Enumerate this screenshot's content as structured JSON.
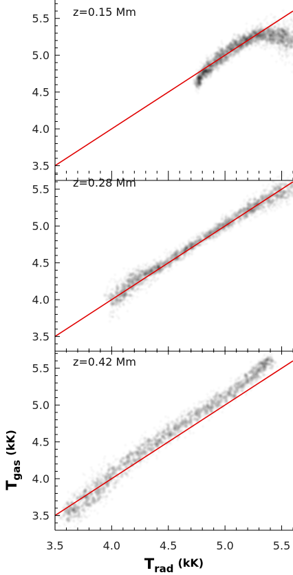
{
  "chart_data": {
    "type": "scatter",
    "layout": "three vertically stacked panels sharing the x axis",
    "xlabel": {
      "base": "T",
      "sub": "rad",
      "unit": "(kK)"
    },
    "ylabel": {
      "base": "T",
      "sub": "gas",
      "unit": "(kK)"
    },
    "xlim": [
      3.5,
      5.6
    ],
    "ylim": [
      3.3,
      5.75
    ],
    "xticks": [
      "3.5",
      "4.0",
      "4.5",
      "5.0",
      "5.5"
    ],
    "yticks": [
      "3.5",
      "4.0",
      "4.5",
      "5.0",
      "5.5"
    ],
    "reference_line": {
      "color": "#e00000",
      "x": [
        3.5,
        5.6
      ],
      "y": [
        3.5,
        5.6
      ]
    },
    "density_color": "#1a1a1a",
    "panels": [
      {
        "label": "z=0.15 Mm",
        "ridge": {
          "x": [
            4.75,
            4.85,
            5.0,
            5.15,
            5.3,
            5.45,
            5.6
          ],
          "y": [
            4.62,
            4.82,
            5.02,
            5.18,
            5.3,
            5.27,
            5.2
          ],
          "x_spread": [
            0.02,
            0.05,
            0.07,
            0.07,
            0.07,
            0.08,
            0.08
          ],
          "y_spread": [
            0.06,
            0.05,
            0.05,
            0.05,
            0.06,
            0.12,
            0.18
          ]
        }
      },
      {
        "label": "z=0.28 Mm",
        "ridge": {
          "x": [
            4.0,
            4.2,
            4.4,
            4.7,
            5.0,
            5.3,
            5.6
          ],
          "y": [
            3.95,
            4.25,
            4.42,
            4.72,
            5.02,
            5.3,
            5.55
          ],
          "x_spread": [
            0.05,
            0.06,
            0.06,
            0.05,
            0.05,
            0.06,
            0.08
          ],
          "y_spread": [
            0.12,
            0.1,
            0.05,
            0.04,
            0.04,
            0.08,
            0.12
          ]
        }
      },
      {
        "label": "z=0.42 Mm",
        "ridge": {
          "x": [
            3.6,
            3.8,
            4.0,
            4.3,
            4.6,
            4.9,
            5.2,
            5.4
          ],
          "y": [
            3.5,
            3.75,
            4.05,
            4.42,
            4.72,
            5.02,
            5.32,
            5.62
          ],
          "x_spread": [
            0.05,
            0.07,
            0.08,
            0.07,
            0.06,
            0.06,
            0.06,
            0.05
          ],
          "y_spread": [
            0.12,
            0.12,
            0.1,
            0.08,
            0.07,
            0.07,
            0.06,
            0.05
          ]
        }
      }
    ]
  }
}
